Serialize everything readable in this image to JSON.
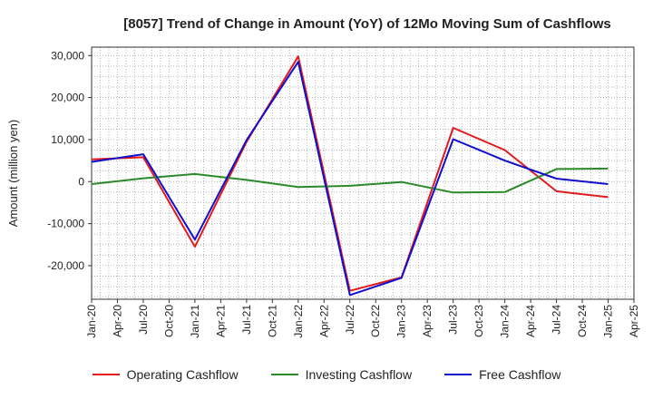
{
  "chart_data": {
    "type": "line",
    "title": "[8057]  Trend of Change in Amount (YoY) of 12Mo Moving Sum of Cashflows",
    "xlabel": "",
    "ylabel": "Amount (million yen)",
    "ylim": [
      -28000,
      32000
    ],
    "yticks": [
      30000,
      20000,
      10000,
      0,
      -10000,
      -20000
    ],
    "ytick_labels": [
      "30,000",
      "20,000",
      "10,000",
      "0",
      "-10,000",
      "-20,000"
    ],
    "categories": [
      "Jan-20",
      "Apr-20",
      "Jul-20",
      "Oct-20",
      "Jan-21",
      "Apr-21",
      "Jul-21",
      "Oct-21",
      "Jan-22",
      "Apr-22",
      "Jul-22",
      "Oct-22",
      "Jan-23",
      "Apr-23",
      "Jul-23",
      "Oct-23",
      "Jan-24",
      "Apr-24",
      "Jul-24",
      "Oct-24",
      "Jan-25",
      "Apr-25"
    ],
    "grid": true,
    "legend_position": "bottom",
    "series": [
      {
        "name": "Operating Cashflow",
        "color": "#e31a1c",
        "values": [
          5300,
          null,
          5800,
          null,
          -15500,
          null,
          9500,
          null,
          29800,
          null,
          -26000,
          null,
          -22800,
          null,
          12800,
          null,
          7500,
          null,
          -2300,
          null,
          -3700,
          null
        ]
      },
      {
        "name": "Investing Cashflow",
        "color": "#2a8a2a",
        "values": [
          -600,
          null,
          800,
          null,
          1800,
          null,
          400,
          null,
          -1300,
          null,
          -1000,
          null,
          -100,
          null,
          -2600,
          null,
          -2500,
          null,
          3000,
          null,
          3100,
          null
        ]
      },
      {
        "name": "Free Cashflow",
        "color": "#1010cc",
        "values": [
          4700,
          null,
          6500,
          null,
          -13800,
          null,
          9900,
          null,
          28500,
          null,
          -27000,
          null,
          -22900,
          null,
          10100,
          null,
          5000,
          null,
          700,
          null,
          -600,
          null
        ]
      }
    ]
  }
}
